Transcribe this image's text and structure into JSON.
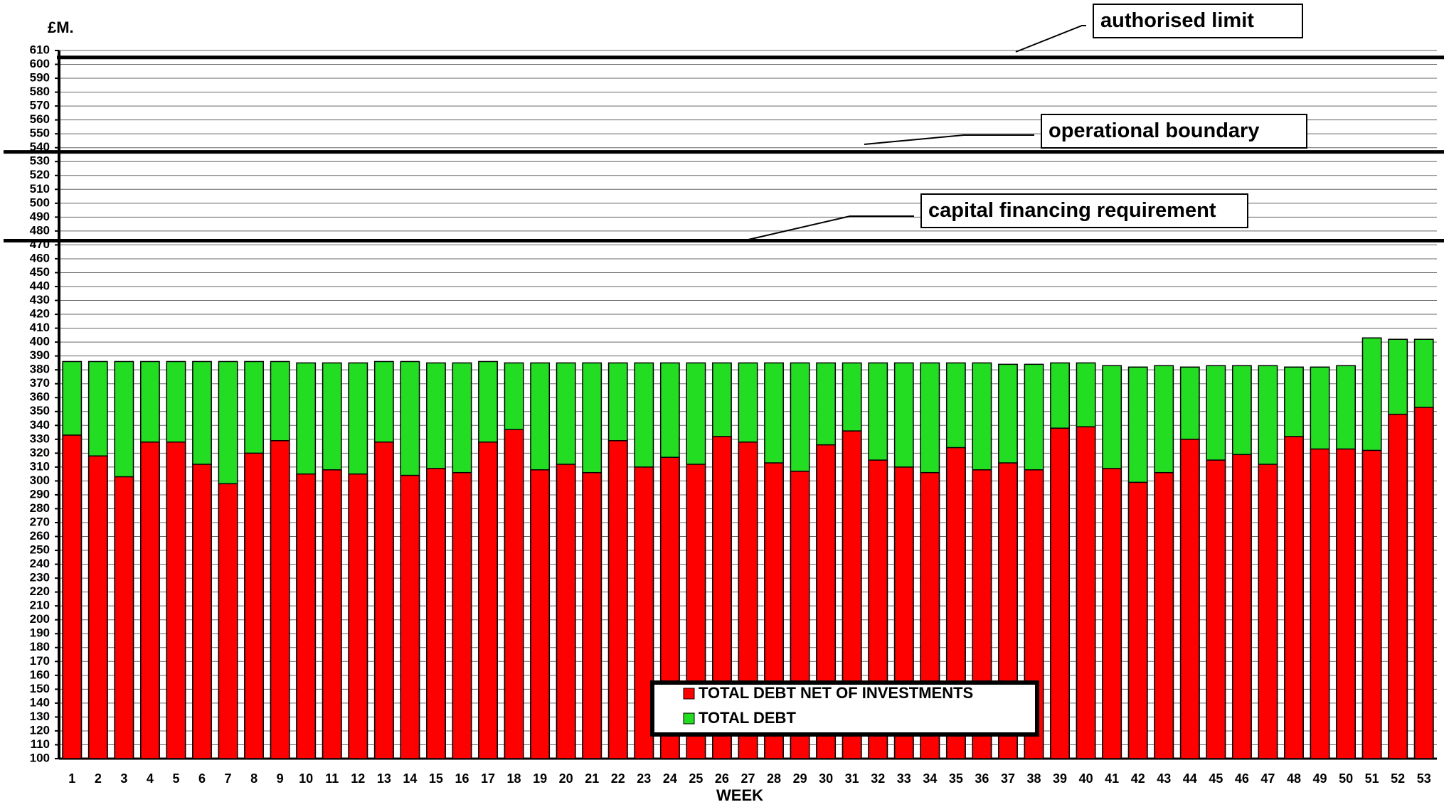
{
  "chart_data": {
    "type": "bar",
    "y_label": "£M.",
    "x_label": "WEEK",
    "categories": [
      "1",
      "2",
      "3",
      "4",
      "5",
      "6",
      "7",
      "8",
      "9",
      "10",
      "11",
      "12",
      "13",
      "14",
      "15",
      "16",
      "17",
      "18",
      "19",
      "20",
      "21",
      "22",
      "23",
      "24",
      "25",
      "26",
      "27",
      "28",
      "29",
      "30",
      "31",
      "32",
      "33",
      "34",
      "35",
      "36",
      "37",
      "38",
      "39",
      "40",
      "41",
      "42",
      "43",
      "44",
      "45",
      "46",
      "47",
      "48",
      "49",
      "50",
      "51",
      "52",
      "53"
    ],
    "series": [
      {
        "name": "TOTAL DEBT",
        "color": "#22dd22",
        "values": [
          386,
          386,
          386,
          386,
          386,
          386,
          386,
          386,
          386,
          385,
          385,
          385,
          386,
          386,
          385,
          385,
          386,
          385,
          385,
          385,
          385,
          385,
          385,
          385,
          385,
          385,
          385,
          385,
          385,
          385,
          385,
          385,
          385,
          385,
          385,
          385,
          384,
          384,
          385,
          385,
          383,
          382,
          383,
          382,
          383,
          383,
          383,
          382,
          382,
          383,
          403,
          402,
          402
        ]
      },
      {
        "name": "TOTAL DEBT NET OF INVESTMENTS",
        "color": "#ff0000",
        "values": [
          333,
          318,
          303,
          328,
          328,
          312,
          298,
          320,
          329,
          305,
          308,
          305,
          328,
          304,
          309,
          306,
          328,
          337,
          308,
          312,
          306,
          329,
          310,
          317,
          312,
          332,
          328,
          313,
          307,
          326,
          336,
          315,
          310,
          306,
          324,
          308,
          313,
          308,
          338,
          339,
          309,
          299,
          306,
          330,
          315,
          319,
          312,
          332,
          323,
          323,
          322,
          348,
          353
        ]
      }
    ],
    "reference_lines": [
      {
        "label": "authorised limit",
        "value": 605
      },
      {
        "label": "operational boundary",
        "value": 537
      },
      {
        "label": "capital financing requirement",
        "value": 473
      }
    ],
    "ylim": [
      100,
      610
    ],
    "yticks": [
      100,
      110,
      120,
      130,
      140,
      150,
      160,
      170,
      180,
      190,
      200,
      210,
      220,
      230,
      240,
      250,
      260,
      270,
      280,
      290,
      300,
      310,
      320,
      330,
      340,
      350,
      360,
      370,
      380,
      390,
      400,
      410,
      420,
      430,
      440,
      450,
      460,
      470,
      480,
      490,
      500,
      510,
      520,
      530,
      540,
      550,
      560,
      570,
      580,
      590,
      600,
      610
    ],
    "grid": true
  }
}
